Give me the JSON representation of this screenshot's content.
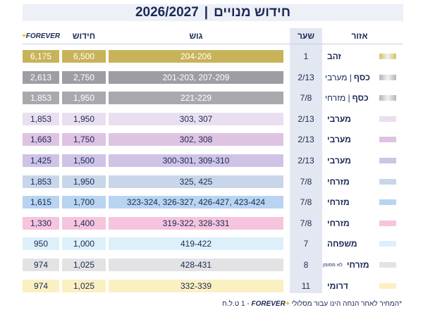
{
  "title": {
    "years": "2026/2027",
    "main": "חידוש מנויים"
  },
  "headers": {
    "forever": "FOREVER",
    "forever_plus": "+",
    "hidush": "חידוש",
    "gush": "גוש",
    "shaar": "שער",
    "area": "אזור"
  },
  "rows": [
    {
      "forever": "6,175",
      "hidush": "6,500",
      "gush": "204-206",
      "shaar": "1",
      "area": "זהב",
      "area_sub": "",
      "area_tiny": "",
      "fill": "#c9b35a",
      "swatch": "#d4c260",
      "dark": true
    },
    {
      "forever": "2,613",
      "hidush": "2,750",
      "gush": "201-203, 207-209",
      "shaar": "2/13",
      "area": "כסף",
      "area_sub": "| מערבי",
      "area_tiny": "",
      "fill": "#9d9ea3",
      "swatch": "#b4b5b9",
      "dark": true
    },
    {
      "forever": "1,853",
      "hidush": "1,950",
      "gush": "221-229",
      "shaar": "7/8",
      "area": "כסף",
      "area_sub": "| מזרחי",
      "area_tiny": "",
      "fill": "#a8a9ad",
      "swatch": "#b4b5b9",
      "dark": true
    },
    {
      "forever": "1,853",
      "hidush": "1,950",
      "gush": "303, 307",
      "shaar": "2/13",
      "area": "מערבי",
      "area_sub": "",
      "area_tiny": "",
      "fill": "#eadff0",
      "swatch": "#eadff0",
      "dark": false
    },
    {
      "forever": "1,663",
      "hidush": "1,750",
      "gush": "302, 308",
      "shaar": "2/13",
      "area": "מערבי",
      "area_sub": "",
      "area_tiny": "",
      "fill": "#dec3e3",
      "swatch": "#dec3e3",
      "dark": false
    },
    {
      "forever": "1,425",
      "hidush": "1,500",
      "gush": "300-301, 309-310",
      "shaar": "2/13",
      "area": "מערבי",
      "area_sub": "",
      "area_tiny": "",
      "fill": "#cfc3e6",
      "swatch": "#cfc3e6",
      "dark": false
    },
    {
      "forever": "1,853",
      "hidush": "1,950",
      "gush": "325, 425",
      "shaar": "7/8",
      "area": "מזרחי",
      "area_sub": "",
      "area_tiny": "",
      "fill": "#c9d6ea",
      "swatch": "#c9d6ea",
      "dark": false
    },
    {
      "forever": "1,615",
      "hidush": "1,700",
      "gush": "323-324, 326-327, 426-427, 423-424",
      "shaar": "7/8",
      "area": "מזרחי",
      "area_sub": "",
      "area_tiny": "",
      "fill": "#b8d4f0",
      "swatch": "#b8d4f0",
      "dark": false
    },
    {
      "forever": "1,330",
      "hidush": "1,400",
      "gush": "319-322, 328-331",
      "shaar": "7/8",
      "area": "מזרחי",
      "area_sub": "",
      "area_tiny": "",
      "fill": "#f6c4dc",
      "swatch": "#f6c4dc",
      "dark": false
    },
    {
      "forever": "950",
      "hidush": "1,000",
      "gush": "419-422",
      "shaar": "7",
      "area": "משפחה",
      "area_sub": "",
      "area_tiny": "",
      "fill": "#ddf0fa",
      "swatch": "#ddf0fa",
      "dark": false
    },
    {
      "forever": "974",
      "hidush": "1,025",
      "gush": "428-431",
      "shaar": "8",
      "area": "מזרחי",
      "area_sub": "",
      "area_tiny": "לא מסומן",
      "fill": "#e3e3e5",
      "swatch": "#e3e3e5",
      "dark": false
    },
    {
      "forever": "974",
      "hidush": "1,025",
      "gush": "332-339",
      "shaar": "11",
      "area": "דרומי",
      "area_sub": "",
      "area_tiny": "",
      "fill": "#fbf0c2",
      "swatch": "#fbf0c2",
      "dark": false
    }
  ],
  "footnote": {
    "before": "*המחיר לאחר הנחה הינו עבור מסלולי",
    "brand": "FOREVER",
    "plus": "+",
    "after": "- 1 ט.ל.ח"
  }
}
